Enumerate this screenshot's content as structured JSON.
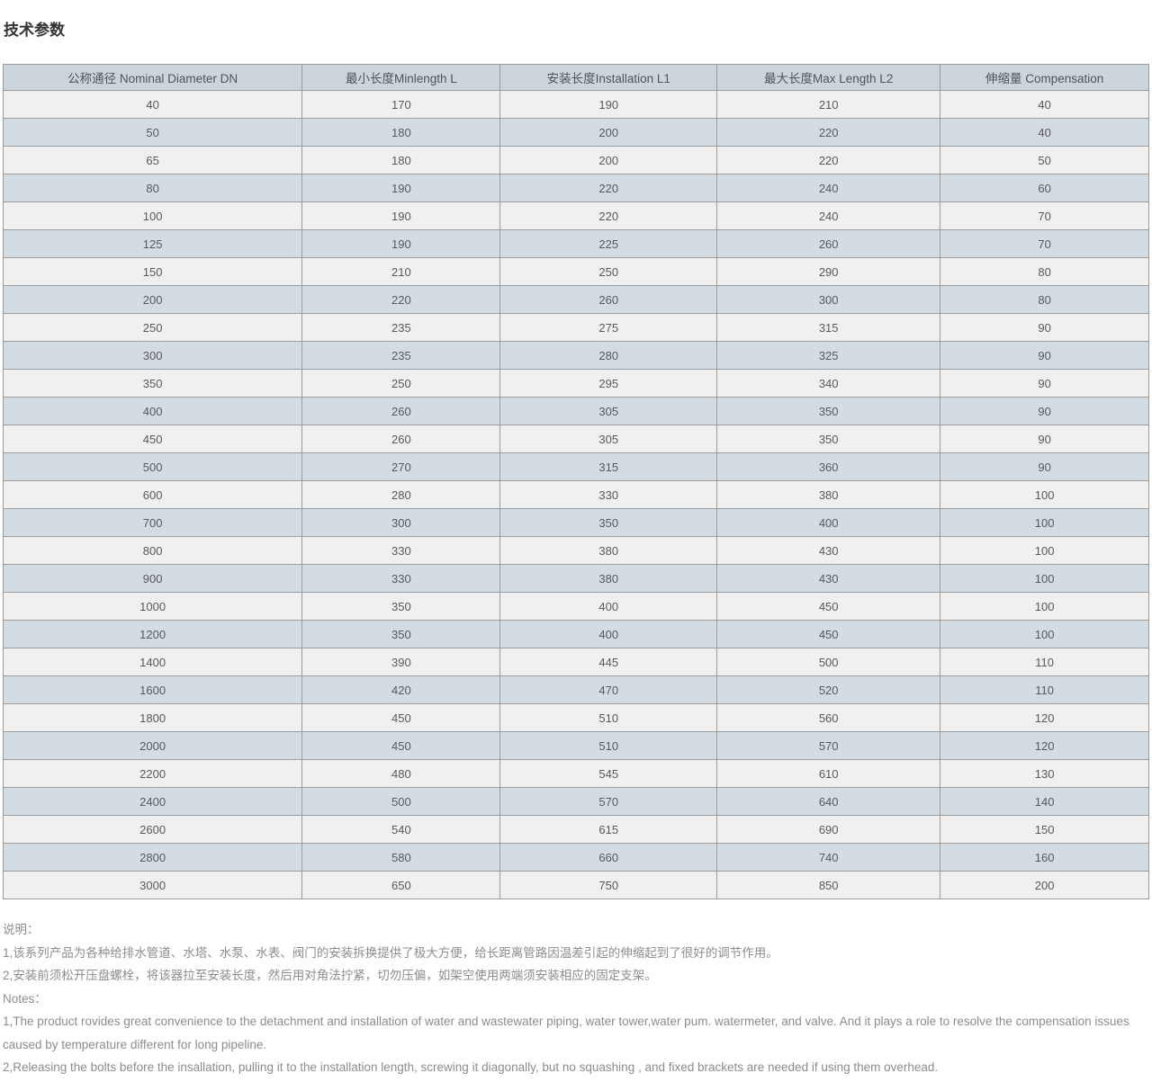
{
  "page": {
    "title": "技术参数"
  },
  "table": {
    "headers": [
      "公称通径 Nominal Diameter DN",
      "最小长度Minlength L",
      "安装长度Installation L1",
      "最大长度Max Length L2",
      "伸缩量 Compensation"
    ],
    "rows": [
      [
        "40",
        "170",
        "190",
        "210",
        "40"
      ],
      [
        "50",
        "180",
        "200",
        "220",
        "40"
      ],
      [
        "65",
        "180",
        "200",
        "220",
        "50"
      ],
      [
        "80",
        "190",
        "220",
        "240",
        "60"
      ],
      [
        "100",
        "190",
        "220",
        "240",
        "70"
      ],
      [
        "125",
        "190",
        "225",
        "260",
        "70"
      ],
      [
        "150",
        "210",
        "250",
        "290",
        "80"
      ],
      [
        "200",
        "220",
        "260",
        "300",
        "80"
      ],
      [
        "250",
        "235",
        "275",
        "315",
        "90"
      ],
      [
        "300",
        "235",
        "280",
        "325",
        "90"
      ],
      [
        "350",
        "250",
        "295",
        "340",
        "90"
      ],
      [
        "400",
        "260",
        "305",
        "350",
        "90"
      ],
      [
        "450",
        "260",
        "305",
        "350",
        "90"
      ],
      [
        "500",
        "270",
        "315",
        "360",
        "90"
      ],
      [
        "600",
        "280",
        "330",
        "380",
        "100"
      ],
      [
        "700",
        "300",
        "350",
        "400",
        "100"
      ],
      [
        "800",
        "330",
        "380",
        "430",
        "100"
      ],
      [
        "900",
        "330",
        "380",
        "430",
        "100"
      ],
      [
        "1000",
        "350",
        "400",
        "450",
        "100"
      ],
      [
        "1200",
        "350",
        "400",
        "450",
        "100"
      ],
      [
        "1400",
        "390",
        "445",
        "500",
        "110"
      ],
      [
        "1600",
        "420",
        "470",
        "520",
        "110"
      ],
      [
        "1800",
        "450",
        "510",
        "560",
        "120"
      ],
      [
        "2000",
        "450",
        "510",
        "570",
        "120"
      ],
      [
        "2200",
        "480",
        "545",
        "610",
        "130"
      ],
      [
        "2400",
        "500",
        "570",
        "640",
        "140"
      ],
      [
        "2600",
        "540",
        "615",
        "690",
        "150"
      ],
      [
        "2800",
        "580",
        "660",
        "740",
        "160"
      ],
      [
        "3000",
        "650",
        "750",
        "850",
        "200"
      ]
    ]
  },
  "notes": {
    "paragraphs": [
      "说明：",
      "1,该系列产品为各种给排水管道、水塔、水泵、水表、阀门的安装拆换提供了极大方便，给长距离管路因温差引起的伸缩起到了很好的调节作用。",
      "2,安装前须松开压盘螺栓，将该器拉至安装长度，然后用对角法拧紧，切勿压偏，如架空使用两端须安装相应的固定支架。",
      "Notes：",
      "1,The product rovides great convenience to the detachment and installation of water and wastewater piping, water tower,water pum. watermeter, and valve. And it plays a role to resolve the compensation issues caused by temperature different for long pipeline.",
      "2,Releasing the bolts before the insallation, pulling it to the installation length, screwing it diagonally, but no squashing , and fixed brackets are needed if using them overhead."
    ]
  },
  "colors": {
    "header_bg": "#ccd5dc",
    "row_even_bg": "#d3dce3",
    "row_odd_bg": "#f0f0f0",
    "border": "#9b9b9b",
    "title_text": "#333333",
    "header_text": "#4d555c",
    "cell_text": "#58595b",
    "note_text": "#8a8d90"
  }
}
